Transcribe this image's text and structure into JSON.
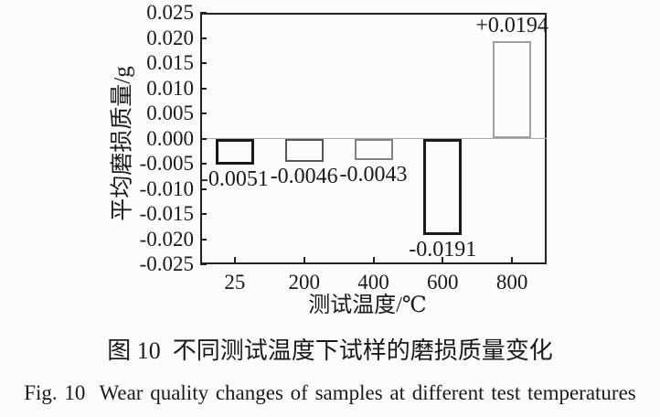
{
  "chart_data": {
    "type": "bar",
    "categories": [
      "25",
      "200",
      "400",
      "600",
      "800"
    ],
    "values": [
      -0.0051,
      -0.0046,
      -0.0043,
      -0.0191,
      0.0194
    ],
    "bar_labels": [
      "-0.0051",
      "-0.0046",
      "-0.0043",
      "-0.0191",
      "+0.0194"
    ],
    "xlabel": "测试温度/℃",
    "ylabel": "平均磨损质量/g",
    "ylim": [
      -0.025,
      0.025
    ],
    "ytick_labels": [
      "0.025",
      "0.020",
      "0.015",
      "0.010",
      "0.005",
      "0.000",
      "-0.005",
      "-0.010",
      "-0.015",
      "-0.020",
      "-0.025"
    ],
    "grid": false,
    "legend_position": "none",
    "bar_border_colors": [
      "#1a1a1a",
      "#565656",
      "#828282",
      "#1a1a1a",
      "#a0a0a0"
    ],
    "bar_border_widths": [
      3,
      2,
      2,
      3,
      2
    ],
    "bar_fill": "#fcfcfb",
    "frame_color": "#222222",
    "zero_line_color": "#aaaaaa",
    "text_color": "#1a1a1a"
  },
  "caption": {
    "zh": "图 10  不同测试温度下试样的磨损质量变化",
    "en": "Fig. 10  Wear quality changes of samples at different test temperatures"
  }
}
